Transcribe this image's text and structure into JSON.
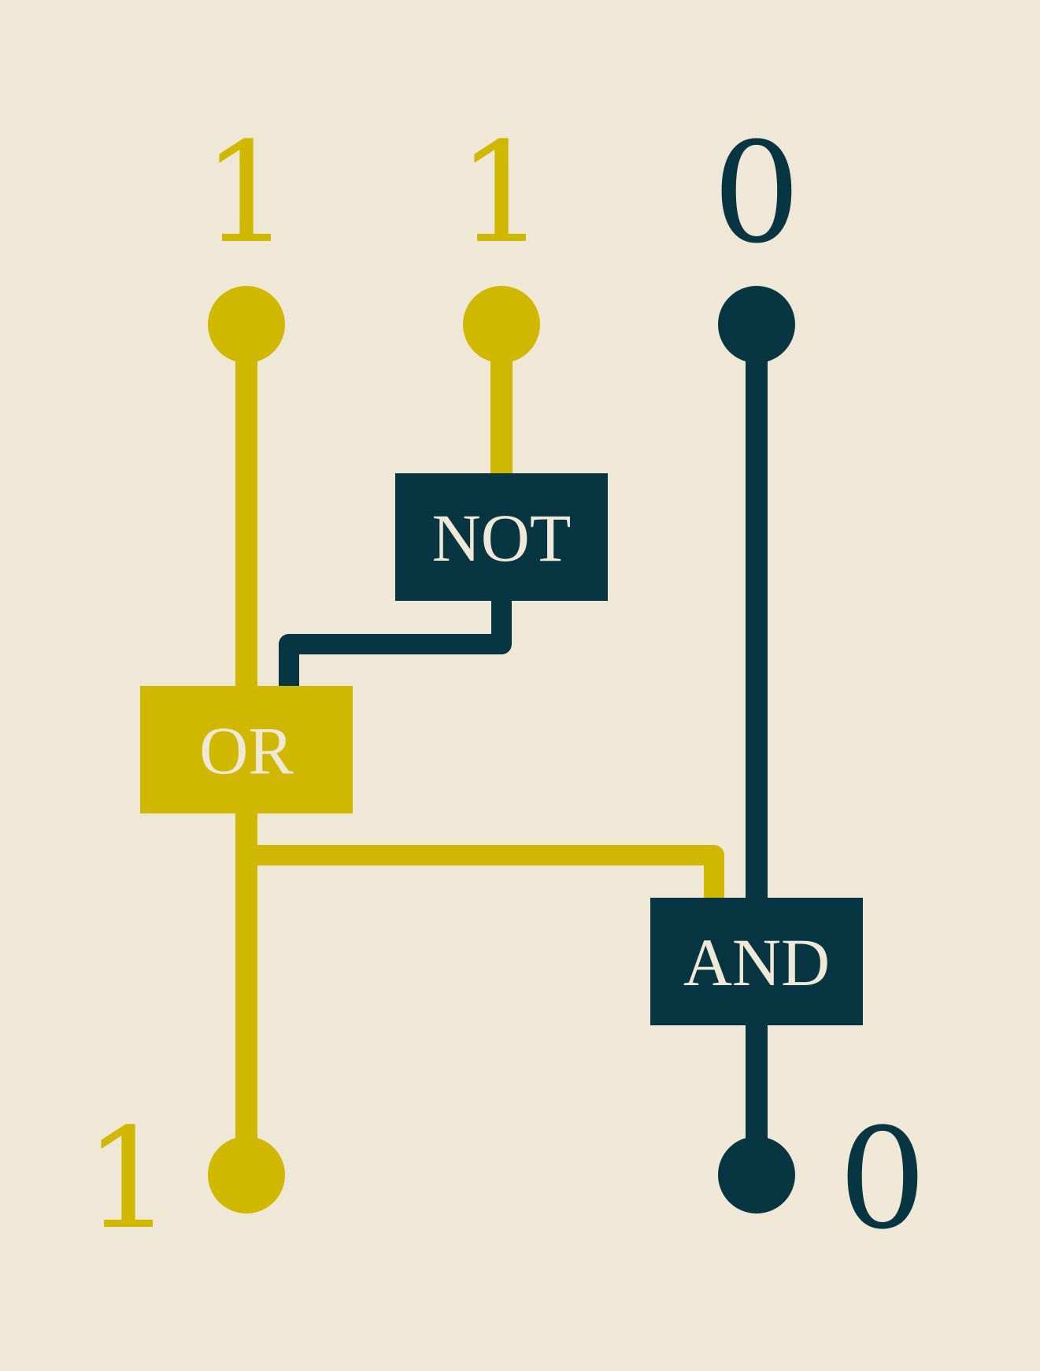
{
  "colors": {
    "background": "#efe8d7",
    "on": "#d0b800",
    "off": "#083542",
    "gate_text": "#efe8d7"
  },
  "inputs": [
    {
      "value": "1"
    },
    {
      "value": "1"
    },
    {
      "value": "0"
    }
  ],
  "gates": {
    "not": {
      "label": "NOT"
    },
    "or": {
      "label": "OR"
    },
    "and": {
      "label": "AND"
    }
  },
  "outputs": [
    {
      "value": "1"
    },
    {
      "value": "0"
    }
  ]
}
